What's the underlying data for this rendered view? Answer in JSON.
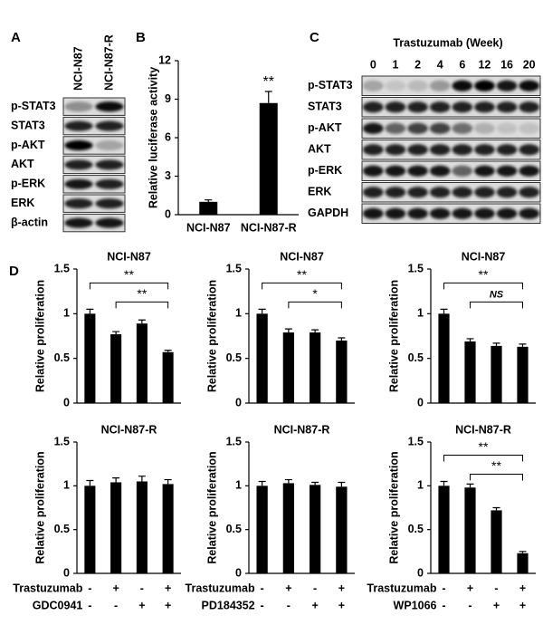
{
  "panel_labels": [
    "A",
    "B",
    "C",
    "D"
  ],
  "blots": [
    {
      "columns": [
        "NCI-N87",
        "NCI-N87-R"
      ],
      "rows": [
        "p-STAT3",
        "STAT3",
        "p-AKT",
        "AKT",
        "p-ERK",
        "ERK",
        "β-actin"
      ]
    },
    {
      "title": "Trastuzumab (Week)",
      "columns": [
        "0",
        "1",
        "2",
        "4",
        "6",
        "12",
        "16",
        "20"
      ],
      "rows": [
        "p-STAT3",
        "STAT3",
        "p-AKT",
        "AKT",
        "p-ERK",
        "ERK",
        "GAPDH"
      ]
    }
  ],
  "chart_data": [
    {
      "type": "bar",
      "ylabel": "Relative luciferase activity",
      "categories": [
        "NCI-N87",
        "NCI-N87-R"
      ],
      "values": [
        1.0,
        8.7
      ],
      "errors": [
        0.15,
        0.9
      ],
      "color": "#000000",
      "ylim": [
        0,
        12
      ],
      "yticks": [
        0,
        3,
        6,
        9,
        12
      ],
      "annotations": [
        {
          "category": 1,
          "text": "**"
        }
      ]
    },
    {
      "type": "bar",
      "title": "NCI-N87",
      "ylabel": "Relative proliferation",
      "categories": [
        null,
        null,
        null,
        null
      ],
      "values": [
        1.0,
        0.77,
        0.89,
        0.57
      ],
      "errors": [
        0.05,
        0.03,
        0.04,
        0.02
      ],
      "color": "#000000",
      "ylim": [
        0,
        1.5
      ],
      "yticks": [
        0,
        0.5,
        1,
        1.5
      ],
      "brackets": [
        {
          "from": 0,
          "to": 3,
          "label": "**"
        },
        {
          "from": 1,
          "to": 3,
          "label": "**"
        }
      ]
    },
    {
      "type": "bar",
      "title": "NCI-N87",
      "ylabel": "Relative proliferation",
      "categories": [
        null,
        null,
        null,
        null
      ],
      "values": [
        1.0,
        0.79,
        0.79,
        0.7
      ],
      "errors": [
        0.05,
        0.04,
        0.03,
        0.03
      ],
      "color": "#000000",
      "ylim": [
        0,
        1.5
      ],
      "yticks": [
        0,
        0.5,
        1,
        1.5
      ],
      "brackets": [
        {
          "from": 0,
          "to": 3,
          "label": "**"
        },
        {
          "from": 1,
          "to": 3,
          "label": "*"
        }
      ]
    },
    {
      "type": "bar",
      "title": "NCI-N87",
      "ylabel": "Relative proliferation",
      "categories": [
        null,
        null,
        null,
        null
      ],
      "values": [
        1.0,
        0.69,
        0.64,
        0.63
      ],
      "errors": [
        0.05,
        0.03,
        0.03,
        0.03
      ],
      "color": "#000000",
      "ylim": [
        0,
        1.5
      ],
      "yticks": [
        0,
        0.5,
        1,
        1.5
      ],
      "brackets": [
        {
          "from": 0,
          "to": 3,
          "label": "**"
        },
        {
          "from": 1,
          "to": 3,
          "label": "NS",
          "italic": true
        }
      ]
    },
    {
      "type": "bar",
      "title": "NCI-N87-R",
      "ylabel": "Relative proliferation",
      "categories": [
        null,
        null,
        null,
        null
      ],
      "values": [
        1.0,
        1.04,
        1.05,
        1.02
      ],
      "errors": [
        0.06,
        0.05,
        0.06,
        0.05
      ],
      "color": "#000000",
      "ylim": [
        0,
        1.5
      ],
      "yticks": [
        0,
        0.5,
        1,
        1.5
      ],
      "treatments": [
        {
          "name": "Trastuzumab",
          "signs": [
            "-",
            "+",
            "-",
            "+"
          ]
        },
        {
          "name": "GDC0941",
          "signs": [
            "-",
            "-",
            "+",
            "+"
          ]
        }
      ]
    },
    {
      "type": "bar",
      "title": "NCI-N87-R",
      "ylabel": "Relative proliferation",
      "categories": [
        null,
        null,
        null,
        null
      ],
      "values": [
        1.0,
        1.03,
        1.01,
        0.99
      ],
      "errors": [
        0.05,
        0.04,
        0.03,
        0.05
      ],
      "color": "#000000",
      "ylim": [
        0,
        1.5
      ],
      "yticks": [
        0,
        0.5,
        1,
        1.5
      ],
      "treatments": [
        {
          "name": "Trastuzumab",
          "signs": [
            "-",
            "+",
            "-",
            "+"
          ]
        },
        {
          "name": "PD184352",
          "signs": [
            "-",
            "-",
            "+",
            "+"
          ]
        }
      ]
    },
    {
      "type": "bar",
      "title": "NCI-N87-R",
      "ylabel": "Relative proliferation",
      "categories": [
        null,
        null,
        null,
        null
      ],
      "values": [
        1.0,
        0.98,
        0.72,
        0.23
      ],
      "errors": [
        0.05,
        0.04,
        0.03,
        0.02
      ],
      "color": "#000000",
      "ylim": [
        0,
        1.5
      ],
      "yticks": [
        0,
        0.5,
        1,
        1.5
      ],
      "brackets": [
        {
          "from": 0,
          "to": 3,
          "label": "**"
        },
        {
          "from": 1,
          "to": 3,
          "label": "**"
        }
      ],
      "treatments": [
        {
          "name": "Trastuzumab",
          "signs": [
            "-",
            "+",
            "-",
            "+"
          ]
        },
        {
          "name": "WP1066",
          "signs": [
            "-",
            "-",
            "+",
            "+"
          ]
        }
      ]
    }
  ]
}
